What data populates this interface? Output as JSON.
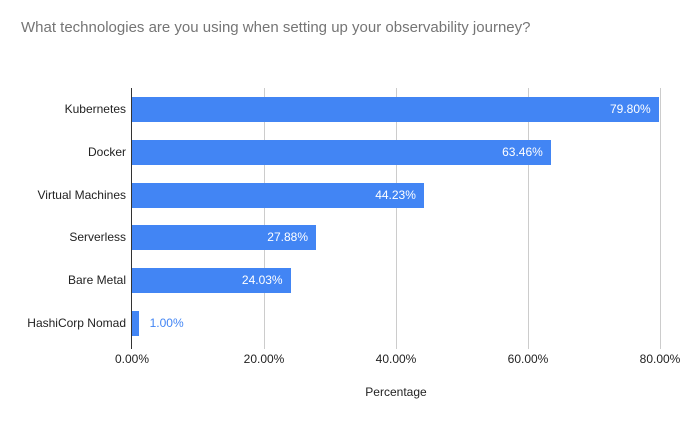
{
  "title": "What technologies are you using when setting up your observability journey?",
  "chart_data": {
    "type": "bar",
    "orientation": "horizontal",
    "title": "What technologies are you using when setting up your observability journey?",
    "categories": [
      "Kubernetes",
      "Docker",
      "Virtual Machines",
      "Serverless",
      "Bare Metal",
      "HashiCorp Nomad"
    ],
    "values": [
      79.8,
      63.46,
      44.23,
      27.88,
      24.03,
      1.0
    ],
    "value_labels": [
      "79.80%",
      "63.46%",
      "44.23%",
      "27.88%",
      "24.03%",
      "1.00%"
    ],
    "xlabel": "Percentage",
    "ylabel": "",
    "xlim": [
      0,
      80
    ],
    "x_ticks": [
      "0.00%",
      "20.00%",
      "40.00%",
      "60.00%",
      "80.00%"
    ],
    "x_tick_values": [
      0,
      20,
      40,
      60,
      80
    ],
    "grid": true,
    "legend_position": "none"
  },
  "colors": {
    "bar": "#4285f4",
    "bar_label_inside": "#ffffff",
    "bar_label_outside": "#4285f4",
    "title_text": "#757575",
    "axis_text": "#222222",
    "gridline": "#cccccc",
    "axis_line": "#333333",
    "background": "#ffffff"
  }
}
